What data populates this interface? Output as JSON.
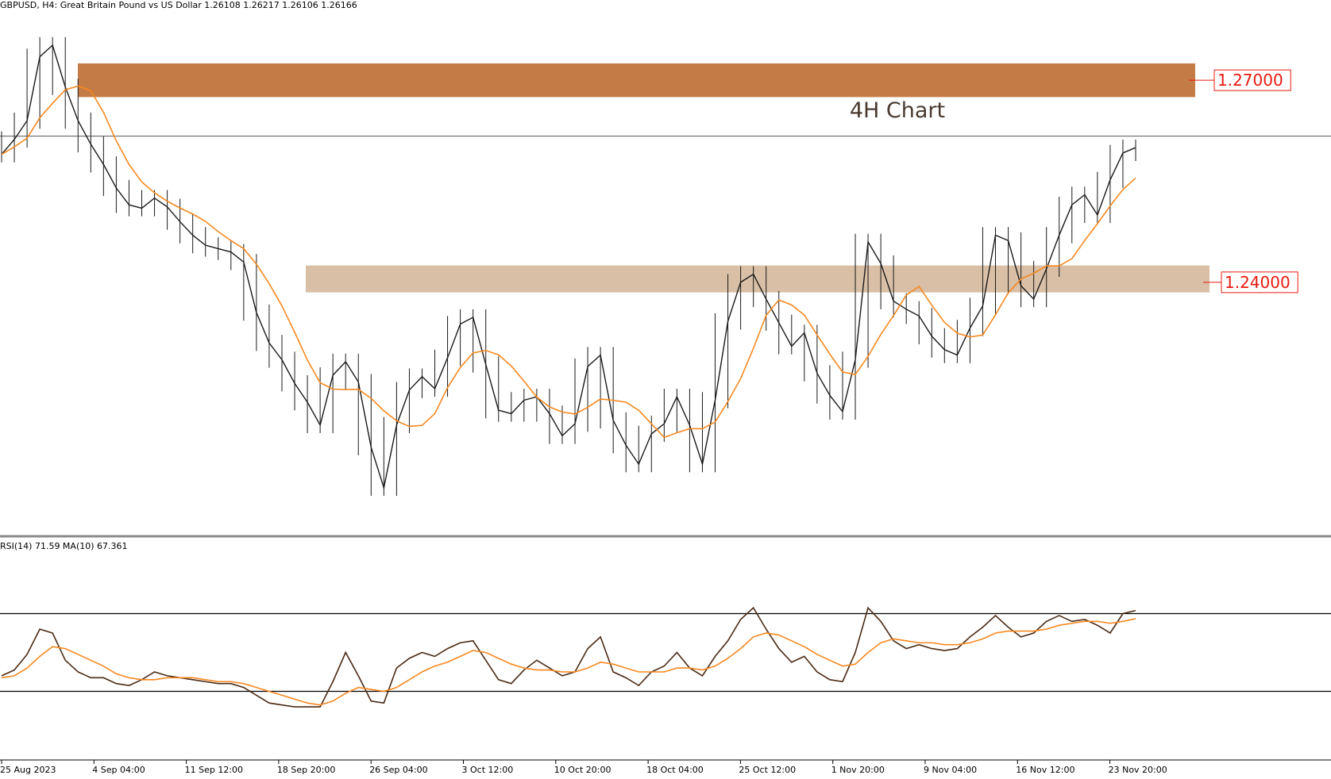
{
  "header": {
    "symbol": "GBPUSD",
    "timeframe": "H4:",
    "instrument_name": "Great Britain Pound vs US Dollar",
    "open": "1.26108",
    "high": "1.26217",
    "low": "1.26106",
    "close": "1.26166"
  },
  "colors": {
    "background": "#ffffff",
    "candle": "#1a1a1a",
    "moving_average": "#f7881f",
    "upper_zone": "#c47c46",
    "lower_zone": "#d8bfa5",
    "price_label": "#e8190f",
    "rsi_line": "#4a2a14",
    "rsi_ma": "#f7881f"
  },
  "annotation": {
    "text": "4H Chart"
  },
  "levels": [
    {
      "label": "1.27000",
      "value": 1.27,
      "zone": [
        1.2675,
        1.2725
      ]
    },
    {
      "label": "1.24000",
      "value": 1.24,
      "zone": [
        1.2385,
        1.2425
      ]
    }
  ],
  "current_price_line": 1.2617,
  "rsi": {
    "label": "RSI(14) 71.59 MA(10) 67.361",
    "period": 14,
    "value": 71.59,
    "ma_period": 10,
    "ma_value": 67.361,
    "levels": [
      70,
      30
    ],
    "ylim": [
      0,
      100
    ]
  },
  "chart_data": {
    "type": "line",
    "title": "",
    "price_ylim": [
      1.203,
      1.2805
    ],
    "x_ticks": [
      "25 Aug 2023",
      "4 Sep 04:00",
      "11 Sep 12:00",
      "18 Sep 20:00",
      "26 Sep 04:00",
      "3 Oct 12:00",
      "10 Oct 20:00",
      "18 Oct 04:00",
      "25 Oct 12:00",
      "1 Nov 20:00",
      "9 Nov 04:00",
      "16 Nov 12:00",
      "23 Nov 20:00"
    ],
    "series": [
      {
        "name": "",
        "values": [
          1.259,
          1.2612,
          1.264,
          1.2735,
          1.2752,
          1.269,
          1.264,
          1.2605,
          1.2575,
          1.254,
          1.2515,
          1.251,
          1.2525,
          1.2512,
          1.249,
          1.247,
          1.2455,
          1.245,
          1.2445,
          1.243,
          1.2355,
          1.231,
          1.2285,
          1.225,
          1.2222,
          1.2188,
          1.2262,
          1.2282,
          1.2252,
          1.2155,
          1.2095,
          1.2188,
          1.224,
          1.226,
          1.2242,
          1.2288,
          1.2338,
          1.2348,
          1.2278,
          1.221,
          1.2205,
          1.2225,
          1.223,
          1.2205,
          1.2172,
          1.219,
          1.2275,
          1.2292,
          1.2195,
          1.2158,
          1.213,
          1.2175,
          1.219,
          1.223,
          1.2188,
          1.213,
          1.2225,
          1.2342,
          1.24,
          1.2412,
          1.2375,
          1.234,
          1.2305,
          1.2325,
          1.2265,
          1.2232,
          1.2208,
          1.2285,
          1.246,
          1.2428,
          1.2372,
          1.236,
          1.235,
          1.232,
          1.23,
          1.2292,
          1.2332,
          1.2365,
          1.247,
          1.2462,
          1.2395,
          1.2375,
          1.242,
          1.247,
          1.2515,
          1.253,
          1.25,
          1.2552,
          1.2592,
          1.26
        ],
        "rsi": [
          38,
          41,
          49,
          62,
          60,
          46,
          40,
          37,
          37,
          34,
          33,
          36,
          40,
          38,
          37,
          36,
          35,
          34,
          34,
          32,
          28,
          24,
          23,
          22,
          22,
          22,
          35,
          50,
          38,
          25,
          24,
          42,
          47,
          50,
          48,
          52,
          55,
          56,
          46,
          36,
          34,
          41,
          46,
          42,
          38,
          40,
          52,
          58,
          40,
          37,
          33,
          40,
          43,
          50,
          42,
          38,
          48,
          56,
          67,
          73,
          62,
          52,
          45,
          48,
          40,
          36,
          35,
          50,
          73,
          66,
          56,
          52,
          54,
          52,
          51,
          52,
          58,
          63,
          69,
          63,
          58,
          60,
          66,
          69,
          66,
          67,
          64,
          60,
          70,
          71.59
        ],
        "rsi_ma": [
          37,
          38,
          42,
          48,
          53,
          52,
          49,
          46,
          43,
          39,
          37,
          36,
          36,
          37,
          37,
          37,
          36,
          35,
          35,
          34,
          32,
          30,
          28,
          26,
          24,
          23,
          25,
          29,
          32,
          31,
          30,
          32,
          36,
          40,
          43,
          45,
          48,
          51,
          50,
          47,
          44,
          42,
          41,
          41,
          40,
          40,
          42,
          45,
          44,
          42,
          40,
          40,
          40,
          42,
          42,
          41,
          43,
          47,
          52,
          58,
          60,
          59,
          56,
          53,
          49,
          46,
          43,
          44,
          50,
          55,
          57,
          56,
          55,
          55,
          54,
          54,
          55,
          57,
          60,
          61,
          61,
          61,
          62,
          64,
          65,
          66,
          66,
          65,
          66,
          67.361
        ]
      }
    ],
    "grid": false,
    "legend": "none"
  }
}
